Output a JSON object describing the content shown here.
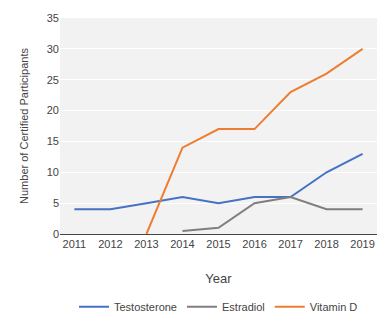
{
  "chart_data": {
    "type": "line",
    "x": [
      2011,
      2012,
      2013,
      2014,
      2015,
      2016,
      2017,
      2018,
      2019
    ],
    "xlabel": "Year",
    "ylabel": "Number of Certified Participants",
    "series": [
      {
        "name": "Testosterone",
        "color": "#4472C4",
        "values": [
          4,
          4,
          5,
          6,
          5,
          6,
          6,
          10,
          13
        ]
      },
      {
        "name": "Estradiol",
        "color": "#7F7F7F",
        "values": [
          null,
          null,
          null,
          0.5,
          1,
          5,
          6,
          4,
          4
        ]
      },
      {
        "name": "Vitamin D",
        "color": "#ED7D31",
        "values": [
          null,
          null,
          0,
          14,
          17,
          17,
          23,
          26,
          30
        ]
      }
    ],
    "xlim": [
      2010.6,
      2019.4
    ],
    "xticks": [
      2011,
      2012,
      2013,
      2014,
      2015,
      2016,
      2017,
      2018,
      2019
    ],
    "ylim": [
      0,
      35
    ],
    "yticks": [
      0,
      5,
      10,
      15,
      20,
      25,
      30,
      35
    ],
    "grid": true,
    "legend": "bottom"
  }
}
